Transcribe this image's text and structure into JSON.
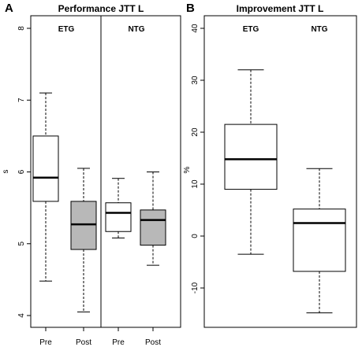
{
  "panels": [
    {
      "letter": "A"
    },
    {
      "letter": "B"
    }
  ],
  "chart_data": [
    {
      "type": "boxplot",
      "title": "Performance JTT L",
      "xlabel": "",
      "ylabel": "s",
      "ylim": [
        3.9,
        8.1
      ],
      "yticks": [
        4,
        5,
        6,
        7,
        8
      ],
      "categories": [
        "Pre",
        "Post",
        "Pre",
        "Post"
      ],
      "groups": [
        {
          "label": "ETG",
          "categories": [
            0,
            1
          ]
        },
        {
          "label": "NTG",
          "categories": [
            2,
            3
          ]
        }
      ],
      "group_divider": true,
      "series": [
        {
          "category": "Pre",
          "group": "ETG",
          "min": 4.48,
          "q1": 5.59,
          "median": 5.92,
          "q3": 6.5,
          "max": 7.1,
          "fill": "#ffffff"
        },
        {
          "category": "Post",
          "group": "ETG",
          "min": 4.05,
          "q1": 4.92,
          "median": 5.27,
          "q3": 5.59,
          "max": 6.05,
          "fill": "#b8b8b8"
        },
        {
          "category": "Pre",
          "group": "NTG",
          "min": 5.08,
          "q1": 5.17,
          "median": 5.43,
          "q3": 5.57,
          "max": 5.91,
          "fill": "#ffffff"
        },
        {
          "category": "Post",
          "group": "NTG",
          "min": 4.7,
          "q1": 4.98,
          "median": 5.33,
          "q3": 5.47,
          "max": 6.0,
          "fill": "#b8b8b8"
        }
      ]
    },
    {
      "type": "boxplot",
      "title": "Improvement JTT L",
      "xlabel": "",
      "ylabel": "%",
      "ylim": [
        -17,
        42
      ],
      "yticks": [
        -10,
        0,
        10,
        20,
        30,
        40
      ],
      "categories": [
        "ETG",
        "NTG"
      ],
      "category_labels_at_top": true,
      "series": [
        {
          "category": "ETG",
          "min": -3.5,
          "q1": 9.0,
          "median": 14.8,
          "q3": 21.5,
          "max": 32.0,
          "fill": "#ffffff"
        },
        {
          "category": "NTG",
          "min": -14.8,
          "q1": -6.8,
          "median": 2.5,
          "q3": 5.2,
          "max": 13.0,
          "fill": "#ffffff"
        }
      ]
    }
  ]
}
